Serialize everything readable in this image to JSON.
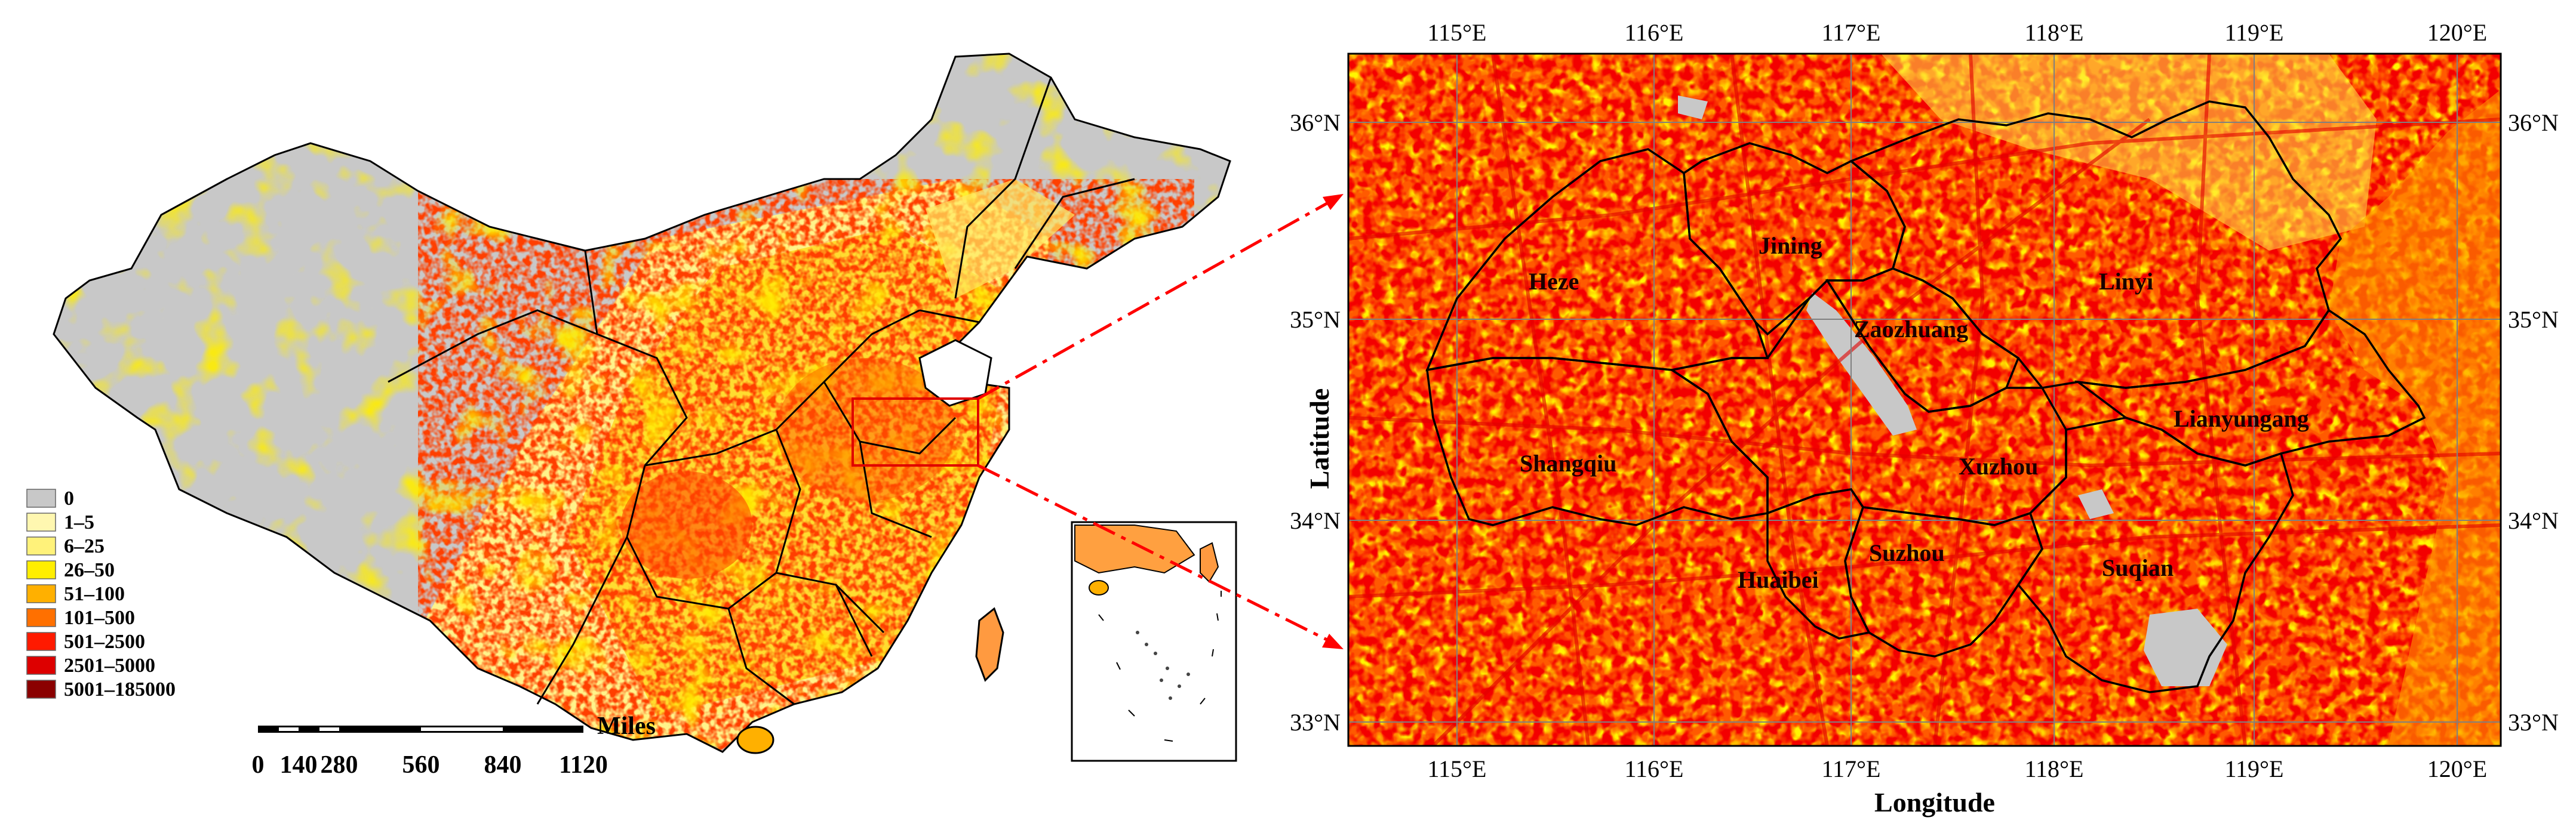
{
  "legend": {
    "items": [
      {
        "label": "0",
        "color": "#c8c8c8"
      },
      {
        "label": "1–5",
        "color": "#fff7b0"
      },
      {
        "label": "6–25",
        "color": "#fff27a"
      },
      {
        "label": "26–50",
        "color": "#ffee00"
      },
      {
        "label": "51–100",
        "color": "#ffb000"
      },
      {
        "label": "101–500",
        "color": "#ff7000"
      },
      {
        "label": "501–2500",
        "color": "#ff1a00"
      },
      {
        "label": "2501–5000",
        "color": "#dd0000"
      },
      {
        "label": "5001–185000",
        "color": "#8b0000"
      }
    ]
  },
  "scalebar": {
    "unit": "Miles",
    "ticks": [
      "0",
      "140",
      "280",
      "560",
      "840",
      "1120"
    ]
  },
  "detail_map": {
    "xlabel": "Longitude",
    "ylabel": "Latitude",
    "lon_ticks": [
      "115°E",
      "116°E",
      "117°E",
      "118°E",
      "119°E",
      "120°E"
    ],
    "lat_ticks": [
      "36°N",
      "35°N",
      "34°N",
      "33°N"
    ],
    "cities": [
      "Heze",
      "Jining",
      "Zaozhuang",
      "Linyi",
      "Lianyungang",
      "Shangqiu",
      "Xuzhou",
      "Suzhou",
      "Huaibei",
      "Suqian"
    ]
  },
  "colors": {
    "gray": "#c8c8c8",
    "yellow": "#ffee00",
    "orange": "#ff7a00",
    "red": "#e60000",
    "darkred": "#8b0000",
    "arrow": "#ff0000"
  }
}
